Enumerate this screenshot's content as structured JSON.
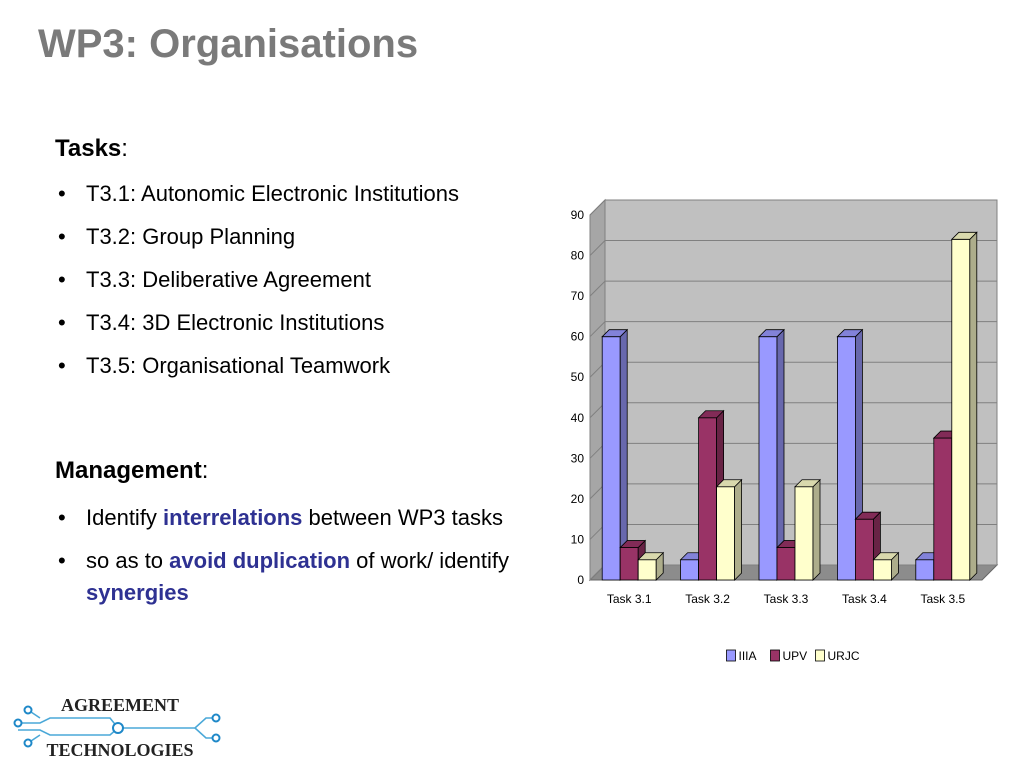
{
  "slide": {
    "title": "WP3: Organisations",
    "tasks_heading": "Tasks",
    "tasks_colon": ":",
    "tasks": [
      "T3.1: Autonomic Electronic Institutions",
      "T3.2: Group Planning",
      "T3.3: Deliberative Agreement",
      "T3.4: 3D Electronic Institutions",
      "T3.5: Organisational Teamwork"
    ],
    "management_heading": "Management",
    "management_colon": ":",
    "management_items": [
      {
        "before": "Identify ",
        "highlight": "interrelations",
        "after": " between WP3 tasks"
      },
      {
        "before": "so as to ",
        "highlight": "avoid duplication",
        "after": " of work/ identify ",
        "highlight2": "synergies"
      }
    ],
    "logo": {
      "line1": "AGREEMENT",
      "line2": "TECHNOLOGIES"
    }
  },
  "chart_data": {
    "type": "bar",
    "style": "3d-clustered",
    "categories": [
      "Task 3.1",
      "Task 3.2",
      "Task 3.3",
      "Task 3.4",
      "Task 3.5"
    ],
    "series": [
      {
        "name": "IIIA",
        "values": [
          60,
          5,
          60,
          60,
          5
        ],
        "color": "#9999ff"
      },
      {
        "name": "UPV",
        "values": [
          8,
          40,
          8,
          15,
          35
        ],
        "color": "#993366"
      },
      {
        "name": "URJC",
        "values": [
          5,
          23,
          23,
          5,
          84
        ],
        "color": "#ffffcc"
      }
    ],
    "ylim": [
      0,
      90
    ],
    "yticks": [
      "0",
      "10",
      "20",
      "30",
      "40",
      "50",
      "60",
      "70",
      "80",
      "90"
    ],
    "grid": true,
    "legend": "bottom",
    "colors": {
      "wall": "#c0c0c0",
      "grid": "#808080"
    }
  }
}
